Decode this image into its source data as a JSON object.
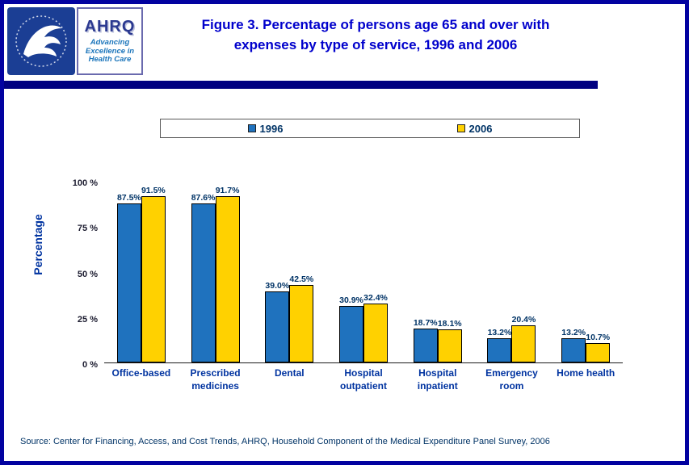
{
  "header": {
    "ahrq_logo_text": "AHRQ",
    "ahrq_tagline": "Advancing Excellence in Health Care",
    "title_line1": "Figure 3. Percentage of persons age 65 and over with",
    "title_line2": "expenses by type of service, 1996 and 2006"
  },
  "chart_data": {
    "type": "bar",
    "title": "Figure 3. Percentage of persons age 65 and over with expenses by type of service, 1996 and 2006",
    "categories": [
      "Office-based",
      "Prescribed medicines",
      "Dental",
      "Hospital outpatient",
      "Hospital inpatient",
      "Emergency room",
      "Home health"
    ],
    "series": [
      {
        "name": "1996",
        "color": "#1F72BE",
        "values": [
          87.5,
          87.6,
          39.0,
          30.9,
          18.7,
          13.2,
          13.2
        ]
      },
      {
        "name": "2006",
        "color": "#FFD100",
        "values": [
          91.5,
          91.7,
          42.5,
          32.4,
          18.1,
          20.4,
          10.7
        ]
      }
    ],
    "ylabel": "Percentage",
    "ylim": [
      0,
      100
    ],
    "yticks": [
      0,
      25,
      50,
      75,
      100
    ],
    "ytick_labels": [
      "0 %",
      "25 %",
      "50 %",
      "75 %",
      "100 %"
    ],
    "grid": false,
    "legend_position": "top-center",
    "value_label_suffix": "%"
  },
  "footer": {
    "source": "Source: Center for Financing, Access, and Cost Trends, AHRQ, Household Component of the Medical Expenditure Panel Survey, 2006"
  },
  "colors": {
    "page_border": "#0202A0",
    "header_divider": "#000080",
    "title_text": "#0000CC",
    "bar_1996": "#1F72BE",
    "bar_2006": "#FFD100",
    "value_label": "#003366",
    "category_label": "#0033A0"
  }
}
